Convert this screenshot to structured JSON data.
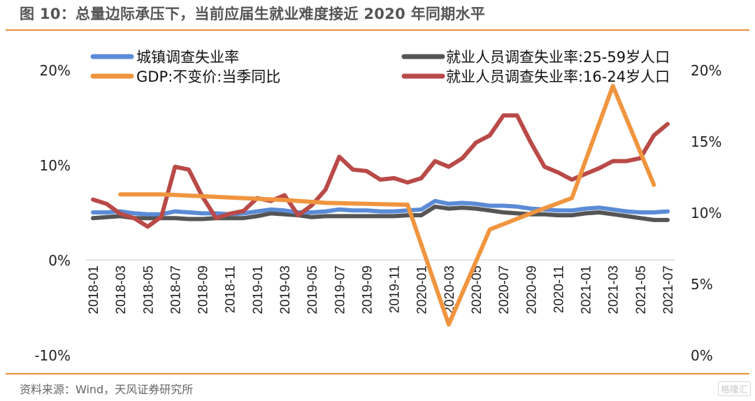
{
  "title": "图 10：总量边际承压下，当前应届生就业难度接近 2020 年同期水平",
  "source": "资料来源：Wind，天风证券研究所",
  "watermark": "格隆汇",
  "colors": {
    "accent": "#e69138",
    "urban": "#5b8bd6",
    "gdp": "#f0953f",
    "age25_59": "#555555",
    "age16_24": "#b94a48"
  },
  "chart_data": {
    "type": "line",
    "title": "",
    "x": [
      "2018-01",
      "2018-02",
      "2018-03",
      "2018-04",
      "2018-05",
      "2018-06",
      "2018-07",
      "2018-08",
      "2018-09",
      "2018-10",
      "2018-11",
      "2018-12",
      "2019-01",
      "2019-02",
      "2019-03",
      "2019-04",
      "2019-05",
      "2019-06",
      "2019-07",
      "2019-08",
      "2019-09",
      "2019-10",
      "2019-11",
      "2019-12",
      "2020-01",
      "2020-02",
      "2020-03",
      "2020-04",
      "2020-05",
      "2020-06",
      "2020-07",
      "2020-08",
      "2020-09",
      "2020-10",
      "2020-11",
      "2020-12",
      "2021-01",
      "2021-02",
      "2021-03",
      "2021-04",
      "2021-05",
      "2021-06",
      "2021-07"
    ],
    "x_tick_labels": [
      "2018-01",
      "2018-03",
      "2018-05",
      "2018-07",
      "2018-09",
      "2018-11",
      "2019-01",
      "2019-03",
      "2019-05",
      "2019-07",
      "2019-09",
      "2019-11",
      "2020-01",
      "2020-03",
      "2020-05",
      "2020-07",
      "2020-09",
      "2020-11",
      "2021-01",
      "2021-03",
      "2021-05",
      "2021-07"
    ],
    "y_left": {
      "ylim": [
        -10,
        20
      ],
      "ticks": [
        "20%",
        "10%",
        "0%",
        "-10%"
      ],
      "tick_values": [
        20,
        10,
        0,
        -10
      ]
    },
    "y_right": {
      "ylim": [
        0,
        20
      ],
      "ticks": [
        "20%",
        "15%",
        "10%",
        "5%",
        "0%"
      ],
      "tick_values": [
        20,
        15,
        10,
        5,
        0
      ]
    },
    "legend": {
      "placement": "top",
      "entries": [
        "城镇调查失业率",
        "GDP:不变价:当季同比",
        "就业人员调查失业率:25-59岁人口",
        "就业人员调查失业率:16-24岁人口"
      ]
    },
    "grid": false,
    "series": [
      {
        "name": "城镇调查失业率",
        "axis": "left",
        "color": "#5b8bd6",
        "values": [
          5.0,
          5.0,
          5.1,
          4.9,
          4.8,
          4.8,
          5.1,
          5.0,
          4.9,
          4.9,
          4.8,
          4.9,
          5.1,
          5.3,
          5.2,
          5.0,
          5.0,
          5.1,
          5.3,
          5.2,
          5.2,
          5.1,
          5.1,
          5.2,
          5.3,
          6.2,
          5.9,
          6.0,
          5.9,
          5.7,
          5.7,
          5.6,
          5.4,
          5.3,
          5.2,
          5.2,
          5.4,
          5.5,
          5.3,
          5.1,
          5.0,
          5.0,
          5.1
        ]
      },
      {
        "name": "GDP:不变价:当季同比",
        "axis": "left",
        "color": "#f0953f",
        "points": [
          {
            "x": "2018-03",
            "y": 6.9
          },
          {
            "x": "2018-06",
            "y": 6.9
          },
          {
            "x": "2018-09",
            "y": 6.7
          },
          {
            "x": "2018-12",
            "y": 6.5
          },
          {
            "x": "2019-03",
            "y": 6.3
          },
          {
            "x": "2019-06",
            "y": 6.0
          },
          {
            "x": "2019-09",
            "y": 5.9
          },
          {
            "x": "2019-12",
            "y": 5.8
          },
          {
            "x": "2020-03",
            "y": -6.8
          },
          {
            "x": "2020-06",
            "y": 3.2
          },
          {
            "x": "2020-09",
            "y": 4.9
          },
          {
            "x": "2020-12",
            "y": 6.5
          },
          {
            "x": "2021-03",
            "y": 18.3
          },
          {
            "x": "2021-06",
            "y": 7.9
          }
        ]
      },
      {
        "name": "就业人员调查失业率:25-59岁人口",
        "axis": "left",
        "color": "#555555",
        "values": [
          4.4,
          4.5,
          4.6,
          4.4,
          4.4,
          4.4,
          4.4,
          4.3,
          4.3,
          4.4,
          4.4,
          4.4,
          4.6,
          4.9,
          4.8,
          4.7,
          4.5,
          4.6,
          4.6,
          4.6,
          4.6,
          4.6,
          4.6,
          4.7,
          4.7,
          5.6,
          5.4,
          5.5,
          5.4,
          5.2,
          5.0,
          4.9,
          4.8,
          4.8,
          4.7,
          4.7,
          4.9,
          5.0,
          4.8,
          4.6,
          4.4,
          4.2,
          4.2
        ]
      },
      {
        "name": "就业人员调查失业率:16-24岁人口",
        "axis": "right",
        "color": "#b94a48",
        "values": [
          10.9,
          10.6,
          9.9,
          9.6,
          9.0,
          9.7,
          13.2,
          13.0,
          11.1,
          9.6,
          9.9,
          10.1,
          11.0,
          10.8,
          11.2,
          9.8,
          10.5,
          11.6,
          13.9,
          13.0,
          12.9,
          12.3,
          12.4,
          12.1,
          12.4,
          13.6,
          13.2,
          13.8,
          14.9,
          15.4,
          16.8,
          16.8,
          14.9,
          13.2,
          12.8,
          12.3,
          12.7,
          13.1,
          13.6,
          13.6,
          13.8,
          15.4,
          16.2
        ]
      }
    ]
  }
}
